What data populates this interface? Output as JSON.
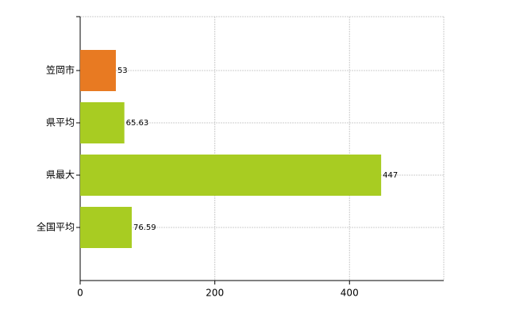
{
  "chart_data": {
    "type": "bar",
    "orientation": "horizontal",
    "categories": [
      "笠岡市",
      "県平均",
      "県最大",
      "全国平均"
    ],
    "values": [
      53,
      65.63,
      447,
      76.59
    ],
    "colors": [
      "#e87a22",
      "#a8cc22",
      "#a8cc22",
      "#a8cc22"
    ],
    "xlim": [
      0,
      540
    ],
    "xticks": [
      0,
      200,
      400
    ],
    "grid": true
  }
}
